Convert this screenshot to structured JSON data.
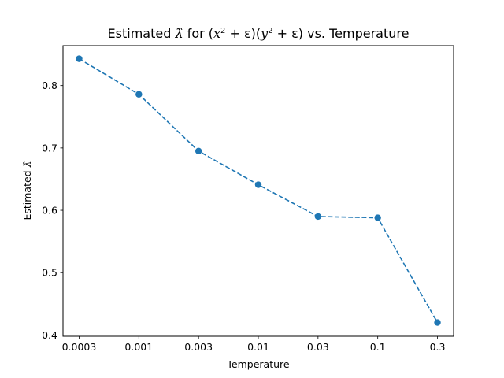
{
  "chart_data": {
    "type": "line",
    "title": {
      "prefix": "Estimated ",
      "lambda": "λ̂",
      "for_word": " for ",
      "expr_open": "(",
      "x": "x",
      "sq1": "2",
      "plus_eps_1": " + ε)(",
      "y": "y",
      "sq2": "2",
      "plus_eps_2": " + ε)",
      "suffix": " vs. Temperature"
    },
    "xlabel": "Temperature",
    "ylabel": {
      "text": "Estimated ",
      "lambda": "λ̂"
    },
    "x_tick_labels": [
      "0.0003",
      "0.001",
      "0.003",
      "0.01",
      "0.03",
      "0.1",
      "0.3"
    ],
    "y_ticks": [
      0.4,
      0.5,
      0.6,
      0.7,
      0.8
    ],
    "y_tick_labels": [
      "0.4",
      "0.5",
      "0.6",
      "0.7",
      "0.8"
    ],
    "ylim": [
      0.398,
      0.864
    ],
    "series": [
      {
        "x": [
          0.0003,
          0.001,
          0.003,
          0.01,
          0.03,
          0.1,
          0.3
        ],
        "y": [
          0.843,
          0.786,
          0.695,
          0.641,
          0.59,
          0.588,
          0.42
        ],
        "color": "#1f77b4",
        "linestyle": "dashed",
        "marker": "circle"
      }
    ],
    "grid": false,
    "legend": "none"
  }
}
